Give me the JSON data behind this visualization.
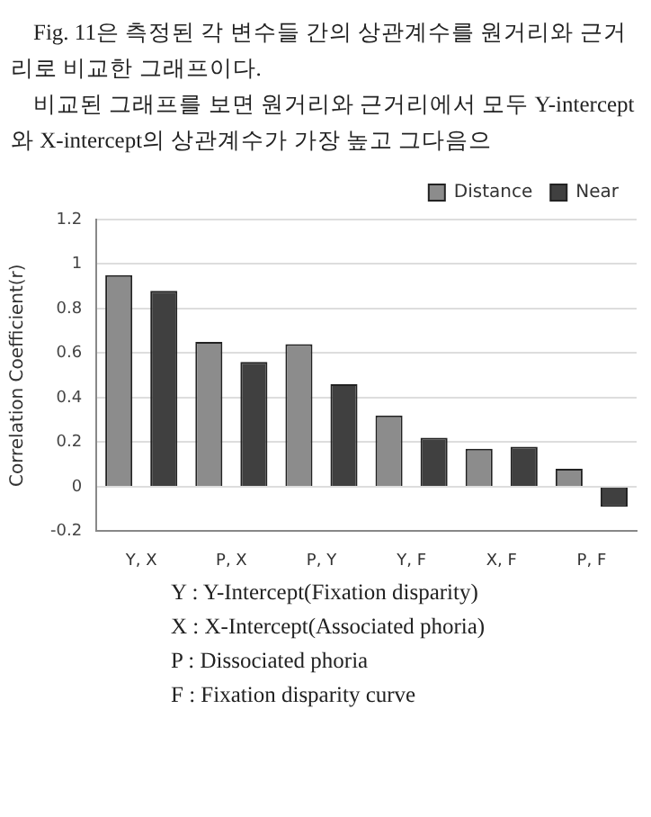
{
  "chart_data": {
    "type": "bar",
    "ylabel": "Correlation Coefficient(r)",
    "categories": [
      "Y, X",
      "P, X",
      "P, Y",
      "Y, F",
      "X, F",
      "P, F"
    ],
    "series": [
      {
        "name": "Distance",
        "color": "#8c8c8c",
        "values": [
          0.95,
          0.65,
          0.64,
          0.32,
          0.17,
          0.08
        ]
      },
      {
        "name": "Near",
        "color": "#404040",
        "values": [
          0.88,
          0.56,
          0.46,
          0.22,
          0.18,
          -0.09
        ]
      }
    ],
    "ylim": [
      -0.2,
      1.2
    ],
    "yticks": [
      -0.2,
      0,
      0.2,
      0.4,
      0.6,
      0.8,
      1,
      1.2
    ],
    "grid": "y",
    "legend": "top right",
    "annotations": [
      "Fig. 11은 측정된 각 변수들 간의 상관계수를 원거리와 근거리로 비교한 그래프이다.",
      "비교된 그래프를 보면 원거리와 근거리에서 모두 Y-intercept와 X-intercept의 상관계수가 가장 높고 그다음으",
      "Y : Y-Intercept(Fixation disparity)",
      "X : X-Intercept(Associated phoria)",
      "P : Dissociated phoria",
      "F : Fixation disparity curve"
    ]
  }
}
